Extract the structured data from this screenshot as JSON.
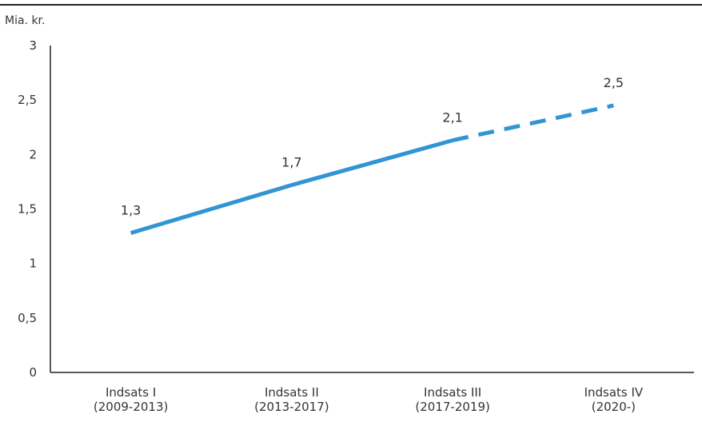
{
  "chart_data": {
    "type": "line",
    "unit_label": "Mia. kr.",
    "categories": [
      [
        "Indsats I",
        "(2009-2013)"
      ],
      [
        "Indsats II",
        "(2013-2017)"
      ],
      [
        "Indsats III",
        "(2017-2019)"
      ],
      [
        "Indsats IV",
        "(2020-)"
      ]
    ],
    "values": [
      1.28,
      1.72,
      2.13,
      2.45
    ],
    "data_labels": [
      "1,3",
      "1,7",
      "2,1",
      "2,5"
    ],
    "projected_from_index": 2,
    "ylim": [
      0,
      3
    ],
    "yticks": [
      0,
      0.5,
      1,
      1.5,
      2,
      2.5,
      3
    ],
    "ytick_labels": [
      "0",
      "0,5",
      "1",
      "1,5",
      "2",
      "2,5",
      "3"
    ],
    "grid": false,
    "line_color": "#3195d3",
    "axis_color": "#222222"
  }
}
